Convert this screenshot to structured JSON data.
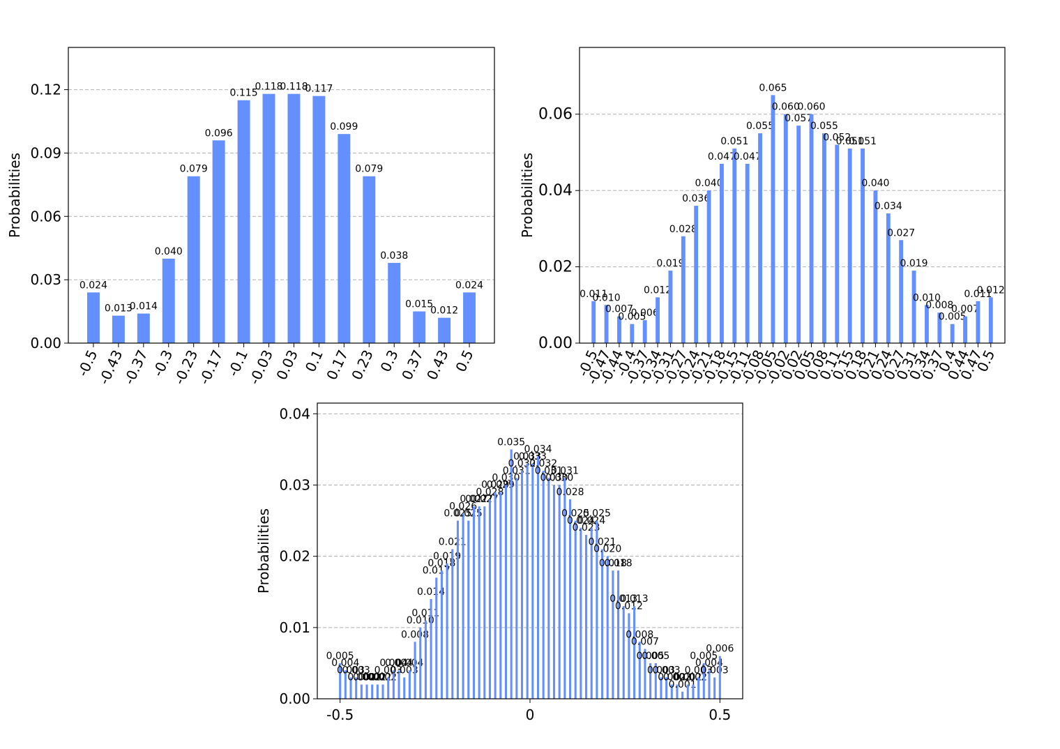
{
  "chart_data": [
    {
      "type": "bar",
      "ylabel": "Probabilities",
      "xlabel": "",
      "ylim": [
        0,
        0.14
      ],
      "yticks": [
        "0.00",
        "0.03",
        "0.06",
        "0.09",
        "0.12"
      ],
      "ytick_values": [
        0,
        0.03,
        0.06,
        0.09,
        0.12
      ],
      "grid": "horizontal dashed",
      "bar_color": "#648fff",
      "categories": [
        "-0.5",
        "-0.43",
        "-0.37",
        "-0.3",
        "-0.23",
        "-0.17",
        "-0.1",
        "-0.03",
        "0.03",
        "0.1",
        "0.17",
        "0.23",
        "0.3",
        "0.37",
        "0.43",
        "0.5"
      ],
      "values": [
        0.024,
        0.013,
        0.014,
        0.04,
        0.079,
        0.096,
        0.115,
        0.118,
        0.118,
        0.117,
        0.099,
        0.079,
        0.038,
        0.015,
        0.012,
        0.024
      ]
    },
    {
      "type": "bar",
      "ylabel": "Probabilities",
      "xlabel": "",
      "ylim": [
        0,
        0.0775
      ],
      "yticks": [
        "0.00",
        "0.02",
        "0.04",
        "0.06"
      ],
      "ytick_values": [
        0,
        0.02,
        0.04,
        0.06
      ],
      "grid": "horizontal dashed",
      "bar_color": "#648fff",
      "categories": [
        "-0.5",
        "-0.47",
        "-0.44",
        "-0.4",
        "-0.37",
        "-0.34",
        "-0.31",
        "-0.27",
        "-0.24",
        "-0.21",
        "-0.18",
        "-0.15",
        "-0.11",
        "-0.08",
        "-0.05",
        "-0.02",
        "0.02",
        "0.05",
        "0.08",
        "0.11",
        "0.15",
        "0.18",
        "0.21",
        "0.24",
        "0.27",
        "0.31",
        "0.34",
        "0.37",
        "0.4",
        "0.44",
        "0.47",
        "0.5"
      ],
      "values": [
        0.011,
        0.01,
        0.007,
        0.005,
        0.006,
        0.012,
        0.019,
        0.028,
        0.036,
        0.04,
        0.047,
        0.051,
        0.047,
        0.055,
        0.065,
        0.06,
        0.057,
        0.06,
        0.055,
        0.052,
        0.051,
        0.051,
        0.04,
        0.034,
        0.027,
        0.019,
        0.01,
        0.008,
        0.005,
        0.007,
        0.011,
        0.012
      ]
    },
    {
      "type": "bar",
      "ylabel": "Probabilities",
      "xlabel": "",
      "ylim": [
        0,
        0.0415
      ],
      "xlim": [
        -0.56,
        0.56
      ],
      "yticks": [
        "0.00",
        "0.01",
        "0.02",
        "0.03",
        "0.04"
      ],
      "ytick_values": [
        0,
        0.01,
        0.02,
        0.03,
        0.04
      ],
      "xticks": [
        "-0.5",
        "0",
        "0.5"
      ],
      "xtick_values": [
        -0.5,
        0,
        0.5
      ],
      "grid": "horizontal dashed",
      "bar_color": "#648fff",
      "x_start": -0.5,
      "x_end": 0.5,
      "values": [
        0.005,
        0.004,
        0.003,
        0.003,
        0.002,
        0.002,
        0.002,
        0.002,
        0.002,
        0.003,
        0.004,
        0.004,
        0.003,
        0.004,
        0.008,
        0.01,
        0.011,
        0.014,
        0.017,
        0.018,
        0.019,
        0.021,
        0.025,
        0.026,
        0.025,
        0.027,
        0.027,
        0.027,
        0.028,
        0.029,
        0.029,
        0.03,
        0.035,
        0.031,
        0.032,
        0.033,
        0.033,
        0.034,
        0.032,
        0.031,
        0.03,
        0.03,
        0.031,
        0.028,
        0.025,
        0.024,
        0.023,
        0.024,
        0.025,
        0.021,
        0.02,
        0.018,
        0.018,
        0.013,
        0.012,
        0.013,
        0.008,
        0.007,
        0.005,
        0.005,
        0.003,
        0.003,
        0.002,
        0.002,
        0.001,
        0.002,
        0.002,
        0.003,
        0.005,
        0.004,
        0.003,
        0.006
      ]
    }
  ]
}
